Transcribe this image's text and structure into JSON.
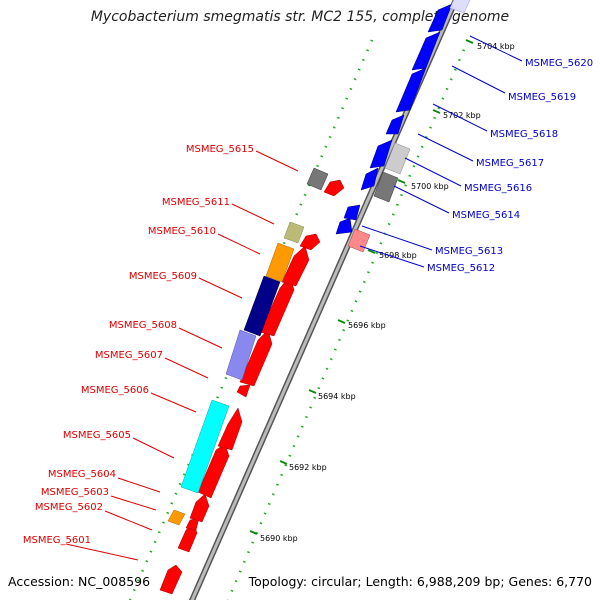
{
  "title": "Mycobacterium smegmatis str. MC2 155, complete genome",
  "footer": {
    "accession": "Accession: NC_008596",
    "summary": "Topology: circular; Length: 6,988,209 bp; Genes: 6,770"
  },
  "colors": {
    "forward_label": "#dd0000",
    "reverse_label": "#0000cc",
    "forward_arrow": "#ff0000",
    "reverse_arrow": "#0000ff",
    "backbone": "#999999",
    "tick": "#22aa22"
  },
  "scale_labels": [
    "5690 kbp",
    "5692 kbp",
    "5694 kbp",
    "5696 kbp",
    "5698 kbp",
    "5700 kbp",
    "5702 kbp",
    "5704 kbp"
  ],
  "left_genes": [
    {
      "name": "MSMEG_5601"
    },
    {
      "name": "MSMEG_5602"
    },
    {
      "name": "MSMEG_5603"
    },
    {
      "name": "MSMEG_5604"
    },
    {
      "name": "MSMEG_5605"
    },
    {
      "name": "MSMEG_5606"
    },
    {
      "name": "MSMEG_5607"
    },
    {
      "name": "MSMEG_5608"
    },
    {
      "name": "MSMEG_5609"
    },
    {
      "name": "MSMEG_5610"
    },
    {
      "name": "MSMEG_5611"
    },
    {
      "name": "MSMEG_5615"
    }
  ],
  "right_genes": [
    {
      "name": "MSMEG_5612"
    },
    {
      "name": "MSMEG_5613"
    },
    {
      "name": "MSMEG_5614"
    },
    {
      "name": "MSMEG_5616"
    },
    {
      "name": "MSMEG_5617"
    },
    {
      "name": "MSMEG_5618"
    },
    {
      "name": "MSMEG_5619"
    },
    {
      "name": "MSMEG_5620"
    }
  ]
}
